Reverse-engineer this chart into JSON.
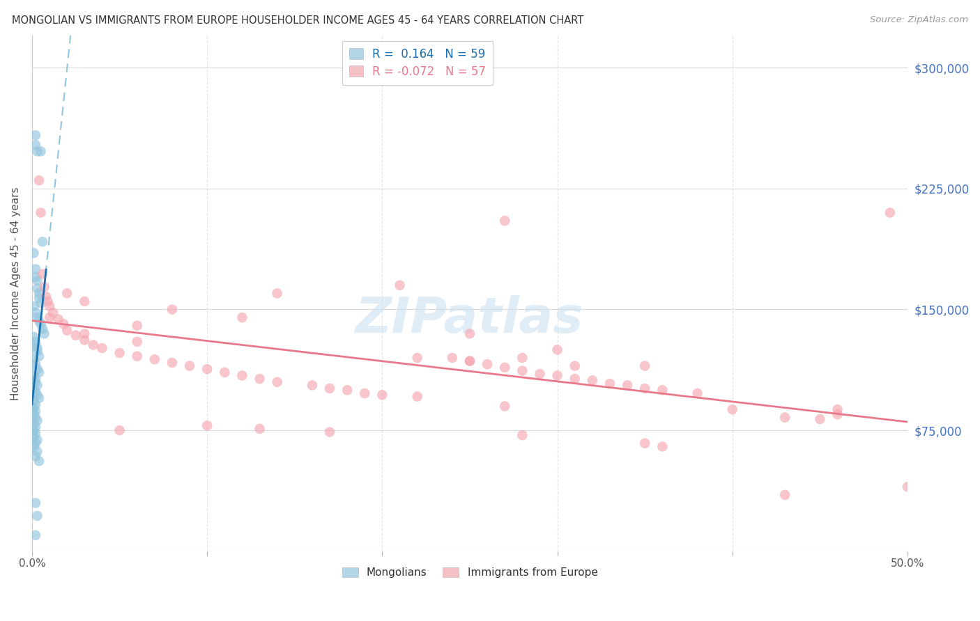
{
  "title": "MONGOLIAN VS IMMIGRANTS FROM EUROPE HOUSEHOLDER INCOME AGES 45 - 64 YEARS CORRELATION CHART",
  "source": "Source: ZipAtlas.com",
  "ylabel": "Householder Income Ages 45 - 64 years",
  "xlim": [
    0.0,
    0.5
  ],
  "ylim": [
    0,
    320000
  ],
  "yticks": [
    0,
    75000,
    150000,
    225000,
    300000
  ],
  "ytick_labels": [
    "",
    "$75,000",
    "$150,000",
    "$225,000",
    "$300,000"
  ],
  "xtick_positions": [
    0.0,
    0.1,
    0.2,
    0.3,
    0.4,
    0.5
  ],
  "xtick_labels": [
    "0.0%",
    "",
    "",
    "",
    "",
    "50.0%"
  ],
  "legend_mongolians_r": "0.164",
  "legend_mongolians_n": "59",
  "legend_europe_r": "-0.072",
  "legend_europe_n": "57",
  "mongolians_color": "#92c5de",
  "europe_color": "#f4a6b0",
  "regression_blue_solid": "#1a6faf",
  "regression_blue_dashed": "#92c5de",
  "regression_pink_solid": "#e8788a",
  "background_color": "#ffffff",
  "grid_color": "#d0d0d0",
  "watermark_color": "#c8dff0",
  "mongolians_x": [
    0.002,
    0.002,
    0.003,
    0.005,
    0.006,
    0.001,
    0.002,
    0.002,
    0.003,
    0.003,
    0.004,
    0.004,
    0.005,
    0.001,
    0.002,
    0.003,
    0.004,
    0.005,
    0.006,
    0.007,
    0.001,
    0.002,
    0.002,
    0.003,
    0.003,
    0.004,
    0.001,
    0.002,
    0.003,
    0.004,
    0.001,
    0.002,
    0.002,
    0.003,
    0.001,
    0.002,
    0.003,
    0.004,
    0.001,
    0.002,
    0.001,
    0.002,
    0.001,
    0.002,
    0.003,
    0.001,
    0.002,
    0.001,
    0.002,
    0.001,
    0.003,
    0.002,
    0.001,
    0.003,
    0.002,
    0.004,
    0.002,
    0.003,
    0.002
  ],
  "mongolians_y": [
    258000,
    252000,
    248000,
    248000,
    192000,
    185000,
    175000,
    170000,
    168000,
    163000,
    160000,
    157000,
    154000,
    152000,
    148000,
    145000,
    143000,
    141000,
    138000,
    135000,
    133000,
    130000,
    128000,
    126000,
    124000,
    121000,
    119000,
    116000,
    113000,
    111000,
    109000,
    107000,
    105000,
    103000,
    101000,
    99000,
    97000,
    95000,
    93000,
    91000,
    89000,
    87000,
    85000,
    83000,
    81000,
    79000,
    77000,
    75000,
    73000,
    71000,
    69000,
    67000,
    65000,
    62000,
    59000,
    56000,
    30000,
    22000,
    10000
  ],
  "europe_x": [
    0.004,
    0.005,
    0.006,
    0.007,
    0.008,
    0.009,
    0.01,
    0.012,
    0.015,
    0.018,
    0.02,
    0.025,
    0.03,
    0.035,
    0.04,
    0.05,
    0.06,
    0.07,
    0.08,
    0.09,
    0.1,
    0.11,
    0.12,
    0.13,
    0.14,
    0.16,
    0.17,
    0.18,
    0.19,
    0.2,
    0.22,
    0.24,
    0.25,
    0.26,
    0.27,
    0.28,
    0.29,
    0.3,
    0.31,
    0.32,
    0.33,
    0.34,
    0.35,
    0.36,
    0.38,
    0.4,
    0.43,
    0.46,
    0.01,
    0.02,
    0.03,
    0.06,
    0.14,
    0.25,
    0.35,
    0.27,
    0.36
  ],
  "europe_y": [
    230000,
    210000,
    172000,
    164000,
    158000,
    155000,
    152000,
    148000,
    144000,
    141000,
    137000,
    134000,
    131000,
    128000,
    126000,
    123000,
    121000,
    119000,
    117000,
    115000,
    113000,
    111000,
    109000,
    107000,
    105000,
    103000,
    101000,
    100000,
    98000,
    97000,
    96000,
    120000,
    118000,
    116000,
    114000,
    112000,
    110000,
    109000,
    107000,
    106000,
    104000,
    103000,
    101000,
    100000,
    98000,
    88000,
    83000,
    85000,
    145000,
    160000,
    135000,
    140000,
    160000,
    135000,
    67000,
    90000,
    65000
  ],
  "extra_europe_x": [
    0.27,
    0.49,
    0.21,
    0.46,
    0.03,
    0.08,
    0.06,
    0.12,
    0.22,
    0.28,
    0.3,
    0.31,
    0.25,
    0.35,
    0.45,
    0.05,
    0.1,
    0.13,
    0.17,
    0.28,
    0.5,
    0.43
  ],
  "extra_europe_y": [
    205000,
    210000,
    165000,
    88000,
    155000,
    150000,
    130000,
    145000,
    120000,
    120000,
    125000,
    115000,
    118000,
    115000,
    82000,
    75000,
    78000,
    76000,
    74000,
    72000,
    40000,
    35000
  ]
}
